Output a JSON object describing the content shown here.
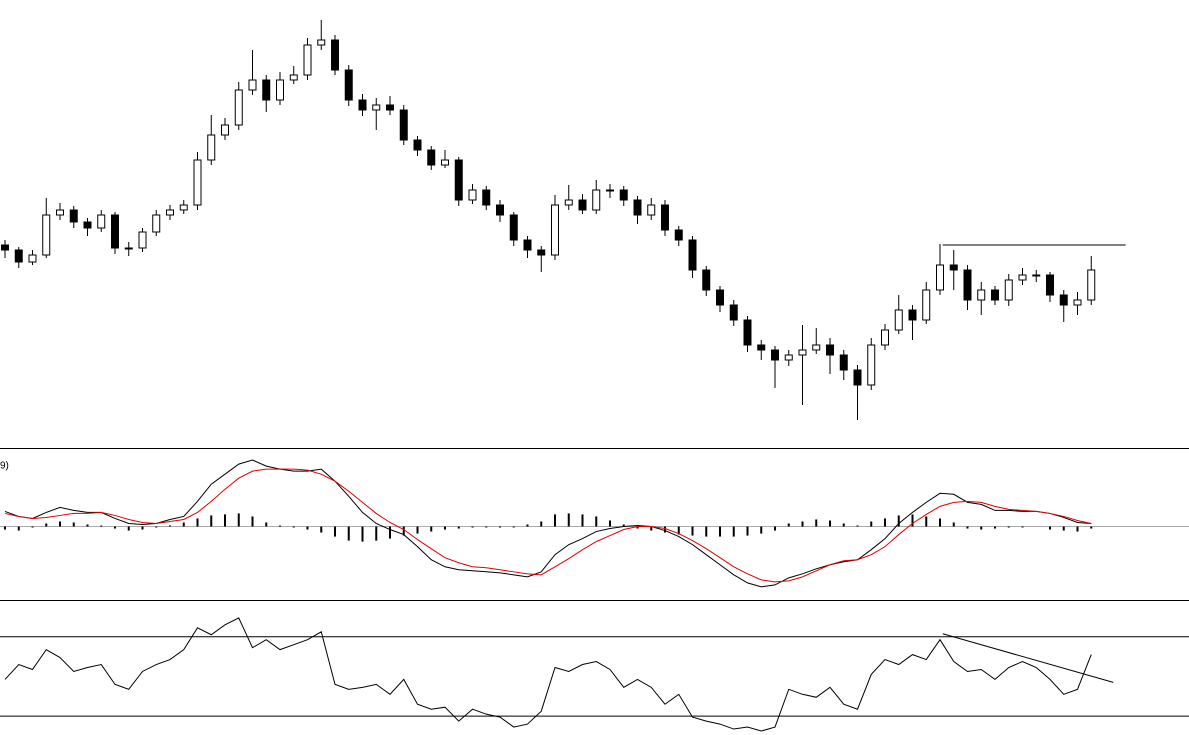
{
  "chart_data": [
    {
      "type": "candlestick",
      "ylim": [
        2,
        450
      ],
      "up_color": "#ffffff",
      "down_color": "#000000",
      "edge_color": "#000000",
      "open": [
        205,
        200,
        188,
        195,
        235,
        240,
        228,
        222,
        235,
        202,
        202,
        218,
        235,
        240,
        245,
        290,
        315,
        325,
        360,
        370,
        350,
        370,
        375,
        405,
        410,
        380,
        350,
        340,
        345,
        340,
        310,
        300,
        285,
        290,
        250,
        260,
        245,
        235,
        210,
        200,
        195,
        245,
        250,
        240,
        260,
        260,
        250,
        235,
        245,
        220,
        210,
        180,
        160,
        145,
        130,
        105,
        100,
        90,
        95,
        100,
        105,
        95,
        80,
        65,
        105,
        120,
        140,
        130,
        160,
        185,
        180,
        150,
        160,
        150,
        170,
        175,
        175,
        155,
        145,
        150
      ],
      "high": [
        210,
        203,
        200,
        252,
        247,
        244,
        232,
        240,
        238,
        208,
        222,
        240,
        245,
        250,
        298,
        335,
        332,
        368,
        400,
        375,
        378,
        384,
        412,
        430,
        415,
        385,
        356,
        352,
        354,
        345,
        314,
        304,
        300,
        293,
        266,
        264,
        250,
        238,
        214,
        204,
        255,
        265,
        256,
        270,
        266,
        264,
        254,
        252,
        250,
        224,
        214,
        184,
        164,
        150,
        134,
        110,
        104,
        100,
        125,
        122,
        112,
        100,
        85,
        112,
        126,
        155,
        145,
        168,
        206,
        200,
        185,
        168,
        164,
        176,
        182,
        180,
        178,
        160,
        158,
        194
      ],
      "low": [
        192,
        182,
        185,
        192,
        230,
        222,
        214,
        218,
        196,
        194,
        198,
        214,
        230,
        236,
        240,
        285,
        310,
        320,
        355,
        338,
        345,
        366,
        370,
        400,
        375,
        344,
        334,
        320,
        335,
        305,
        294,
        280,
        282,
        244,
        246,
        240,
        228,
        204,
        192,
        178,
        190,
        240,
        236,
        236,
        252,
        244,
        226,
        230,
        214,
        204,
        172,
        154,
        138,
        124,
        98,
        90,
        62,
        84,
        45,
        96,
        76,
        70,
        30,
        60,
        100,
        116,
        110,
        126,
        155,
        160,
        140,
        135,
        145,
        144,
        165,
        168,
        148,
        128,
        135,
        145
      ],
      "close": [
        200,
        188,
        195,
        235,
        240,
        228,
        222,
        235,
        202,
        202,
        218,
        235,
        240,
        245,
        290,
        315,
        325,
        360,
        370,
        350,
        370,
        375,
        405,
        410,
        380,
        350,
        340,
        345,
        340,
        310,
        300,
        285,
        290,
        250,
        260,
        245,
        235,
        210,
        200,
        195,
        245,
        250,
        240,
        260,
        260,
        250,
        235,
        245,
        220,
        210,
        180,
        160,
        145,
        130,
        105,
        100,
        90,
        95,
        100,
        105,
        95,
        80,
        65,
        105,
        120,
        140,
        130,
        160,
        185,
        180,
        150,
        160,
        150,
        170,
        175,
        175,
        155,
        145,
        150,
        180
      ],
      "level": {
        "x": [
          68.2,
          81.5
        ],
        "y": 205,
        "color": "#000000"
      }
    },
    {
      "type": "macd",
      "label": "9)",
      "ylim": [
        -73,
        77
      ],
      "baseline": 0,
      "baseline_color": "#aaaaaa",
      "series": [
        {
          "style": "bar",
          "color": "#000000",
          "values": [
            -3,
            -4,
            -1,
            3,
            5,
            4,
            2,
            1,
            -2,
            -4,
            -3,
            -1,
            1,
            4,
            8,
            11,
            12,
            13,
            10,
            4,
            1,
            -1,
            -3,
            -6,
            -10,
            -14,
            -15,
            -14,
            -12,
            -9,
            -7,
            -5,
            -3,
            -2,
            -1,
            -1,
            -1,
            -1,
            2,
            5,
            12,
            13,
            12,
            10,
            6,
            2,
            -2,
            -4,
            -6,
            -8,
            -9,
            -10,
            -10,
            -10,
            -9,
            -7,
            -4,
            3,
            5,
            7,
            6,
            3,
            1,
            5,
            8,
            11,
            12,
            10,
            8,
            4,
            -2,
            -3,
            -2,
            -1,
            -1,
            0,
            -3,
            -4,
            -5,
            -2
          ]
        },
        {
          "style": "line",
          "color": "#000000",
          "values": [
            15,
            10,
            8,
            14,
            19,
            16,
            14,
            14,
            8,
            3,
            2,
            3,
            7,
            10,
            25,
            42,
            52,
            62,
            66,
            60,
            57,
            55,
            55,
            57,
            45,
            30,
            14,
            3,
            -3,
            -8,
            -20,
            -33,
            -40,
            -43,
            -44,
            -45,
            -46,
            -48,
            -50,
            -45,
            -28,
            -18,
            -12,
            -5,
            -2,
            0,
            1,
            0,
            -4,
            -10,
            -18,
            -28,
            -38,
            -48,
            -56,
            -60,
            -58,
            -51,
            -47,
            -42,
            -38,
            -35,
            -33,
            -23,
            -12,
            3,
            14,
            24,
            33,
            32,
            24,
            22,
            16,
            16,
            15,
            15,
            13,
            9,
            4,
            3
          ]
        },
        {
          "style": "line",
          "color": "#e00000",
          "values": [
            13,
            10,
            8,
            9,
            11,
            13,
            13,
            14,
            11,
            7,
            4,
            3,
            5,
            7,
            14,
            25,
            37,
            48,
            55,
            57,
            57,
            57,
            56,
            52,
            45,
            35,
            24,
            13,
            4,
            -3,
            -13,
            -22,
            -31,
            -36,
            -40,
            -41,
            -43,
            -45,
            -47,
            -48,
            -40,
            -32,
            -23,
            -15,
            -9,
            -3,
            0,
            0,
            -2,
            -7,
            -14,
            -22,
            -31,
            -40,
            -47,
            -53,
            -55,
            -54,
            -50,
            -44,
            -38,
            -34,
            -33,
            -28,
            -20,
            -8,
            3,
            12,
            20,
            24,
            25,
            24,
            20,
            17,
            16,
            15,
            13,
            10,
            6,
            3
          ]
        }
      ]
    },
    {
      "type": "line",
      "ylim": [
        20.5,
        88
      ],
      "levels": [
        30,
        70
      ],
      "series": [
        {
          "color": "#000000",
          "values": [
            48.5,
            56,
            53.5,
            63.5,
            59.5,
            52.5,
            54.5,
            56,
            46,
            43.5,
            52.5,
            56,
            58.5,
            63.5,
            74.5,
            71,
            76,
            79.5,
            64.5,
            68.5,
            63.5,
            66,
            68.5,
            72.5,
            46,
            43.5,
            44.5,
            46,
            41,
            48.5,
            36,
            33.5,
            34.5,
            27.5,
            33.5,
            31,
            29.5,
            24.5,
            26,
            32.5,
            54.5,
            52.5,
            56,
            57.5,
            53.5,
            44.5,
            48.5,
            44.5,
            36,
            41,
            29.5,
            27.5,
            26,
            23.5,
            24.5,
            22.5,
            24.5,
            43.5,
            41,
            39.5,
            44.5,
            36,
            33.5,
            51,
            58.5,
            56,
            61,
            58.5,
            68.5,
            57.5,
            52.5,
            53.5,
            48.5,
            54.5,
            57.5,
            54.5,
            48.5,
            41,
            43.5,
            61
          ]
        }
      ],
      "trendline": {
        "x": [
          68.2,
          80.6
        ],
        "y": [
          71.5,
          47
        ],
        "color": "#000000"
      }
    }
  ]
}
